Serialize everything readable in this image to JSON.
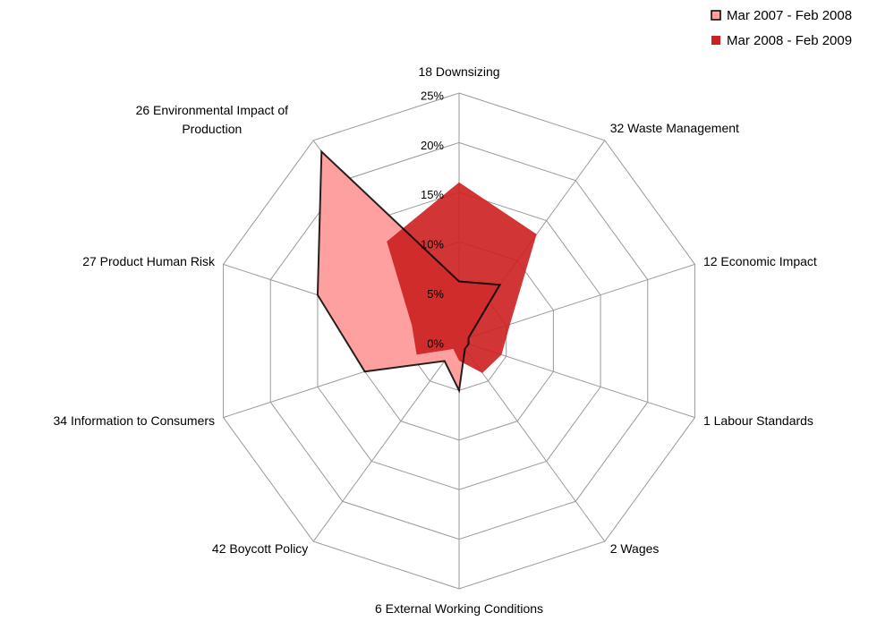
{
  "chart_data": {
    "type": "radar",
    "categories": [
      "18 Downsizing",
      "32 Waste Management",
      "12 Economic Impact",
      "1 Labour Standards",
      "2 Wages",
      "6 External Working Conditions",
      "42 Boycott Policy",
      "34 Information to Consumers",
      "27 Product Human Risk",
      "26 Environmental Impact of Production"
    ],
    "series": [
      {
        "name": "Mar 2007 - Feb 2008",
        "color": "#ffa0a0",
        "values": [
          6,
          7,
          1,
          1,
          1,
          5,
          2.5,
          10,
          15,
          23.6
        ]
      },
      {
        "name": "Mar 2008 - Feb 2009",
        "color": "#cc1f1f",
        "values": [
          16,
          13.3,
          5.4,
          4.5,
          4,
          2,
          1,
          4.5,
          5,
          12.4
        ]
      }
    ],
    "ylim": [
      0,
      25
    ],
    "yticks": [
      {
        "value": 0,
        "label": "0%"
      },
      {
        "value": 5,
        "label": "5%"
      },
      {
        "value": 10,
        "label": "10%"
      },
      {
        "value": 15,
        "label": "15%"
      },
      {
        "value": 20,
        "label": "20%"
      },
      {
        "value": 25,
        "label": "25%"
      }
    ],
    "grid": true,
    "legend": "top-right"
  }
}
